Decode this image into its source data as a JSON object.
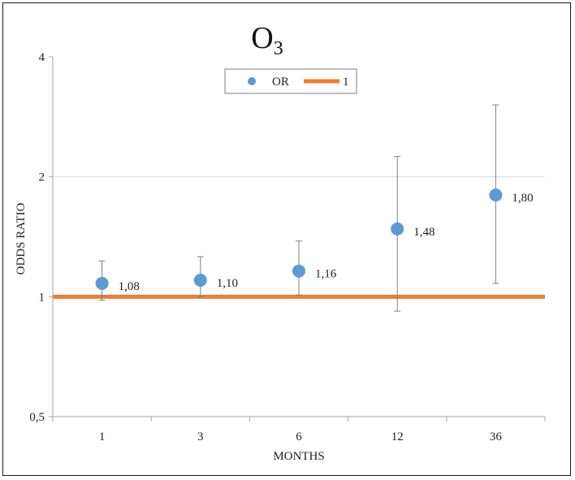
{
  "chart_data": {
    "type": "scatter",
    "title": "O",
    "title_subscript": "3",
    "xlabel": "MONTHS",
    "ylabel": "ODDS RATIO",
    "y_scale": "log2",
    "ylim": [
      0.5,
      4
    ],
    "y_ticks": [
      {
        "value": 0.5,
        "label": "0,5"
      },
      {
        "value": 1,
        "label": "1"
      },
      {
        "value": 2,
        "label": "2"
      },
      {
        "value": 4,
        "label": "4"
      }
    ],
    "categories": [
      "1",
      "3",
      "6",
      "12",
      "36"
    ],
    "series": [
      {
        "name": "OR",
        "color": "#5b9bd5",
        "values": [
          1.08,
          1.1,
          1.16,
          1.48,
          1.8
        ],
        "labels": [
          "1,08",
          "1,10",
          "1,16",
          "1,48",
          "1,80"
        ],
        "ci_lower": [
          0.98,
          1.0,
          1.01,
          0.92,
          1.08
        ],
        "ci_upper": [
          1.23,
          1.26,
          1.38,
          2.25,
          3.03
        ]
      },
      {
        "name": "1",
        "color": "#ed7d31",
        "reference_value": 1
      }
    ],
    "legend_position": "top-center",
    "gridlines": [
      2
    ],
    "colors": {
      "axis": "#a6a6a6",
      "grid": "#d9d9d9",
      "error_bar": "#7f7f7f"
    }
  }
}
